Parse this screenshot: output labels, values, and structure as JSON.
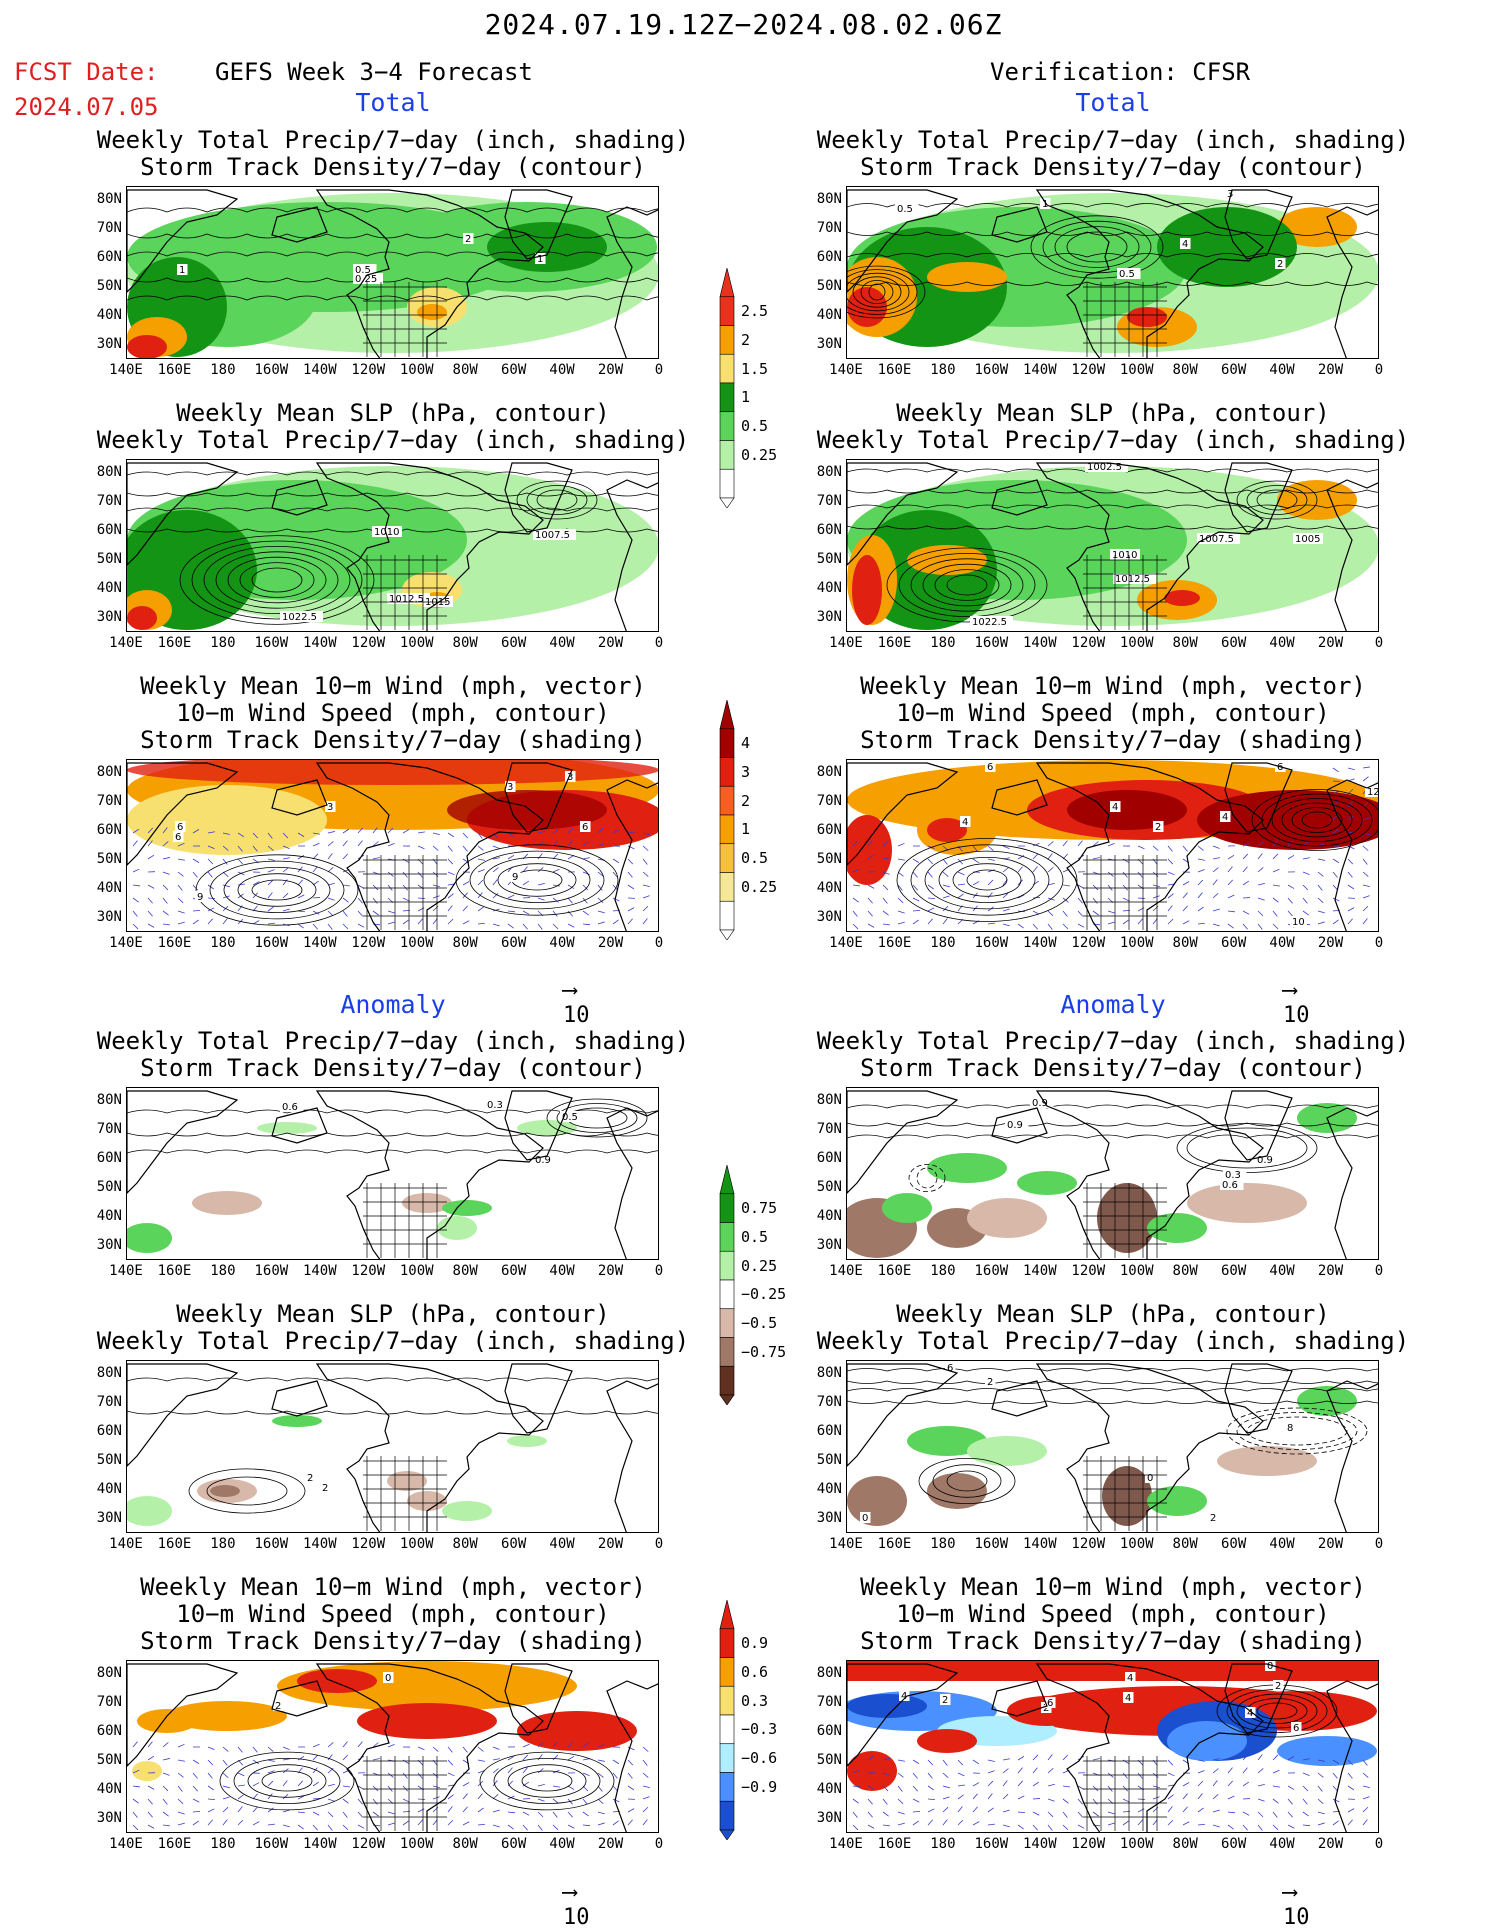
{
  "header": {
    "date_range": "2024.07.19.12Z−2024.08.02.06Z",
    "fcst_date_label": "FCST Date:",
    "fcst_date_value": "2024.07.05",
    "left_title": "GEFS Week 3−4 Forecast",
    "right_title": "Verification: CFSR"
  },
  "sections": {
    "total": "Total",
    "anomaly": "Anomaly"
  },
  "axes": {
    "lat_labels": [
      "80N",
      "70N",
      "60N",
      "50N",
      "40N",
      "30N"
    ],
    "lon_labels": [
      "140E",
      "160E",
      "180",
      "160W",
      "140W",
      "120W",
      "100W",
      "80W",
      "60W",
      "40W",
      "20W",
      "0"
    ]
  },
  "panels": [
    {
      "line1": "Weekly Total Precip/7−day (inch, shading)",
      "line2": "Storm Track Density/7−day (contour)",
      "line3": ""
    },
    {
      "line1": "Weekly Mean SLP (hPa, contour)",
      "line2": "Weekly Total Precip/7−day (inch, shading)",
      "line3": ""
    },
    {
      "line1": "Weekly Mean 10−m Wind (mph, vector)",
      "line2": "10−m Wind Speed (mph, contour)",
      "line3": "Storm Track Density/7−day (shading)"
    }
  ],
  "vector_ref": "10",
  "map_labels": {
    "total_left_1": [
      "1",
      "2",
      "1",
      "0.5",
      "0.25"
    ],
    "total_right_1": [
      "0.5",
      "1",
      "3",
      "4",
      "2",
      "0.5"
    ],
    "total_left_2": [
      "1010",
      "1007.5",
      "1012.5",
      "1015",
      "1022.5"
    ],
    "total_right_2": [
      "1002.5",
      "1007.5",
      "1005",
      "1010",
      "1012.5",
      "1022.5"
    ],
    "total_left_3": [
      "3",
      "3",
      "6",
      "3",
      "6",
      "9",
      "9",
      "6"
    ],
    "total_right_3": [
      "6",
      "4",
      "4",
      "2",
      "4",
      "6",
      "12",
      "10"
    ],
    "anom_left_1": [
      "0.6",
      "0.3",
      "0.5",
      "0.9"
    ],
    "anom_right_1": [
      "0.9",
      "0.9",
      "0.9",
      "0.3",
      "0.6"
    ],
    "anom_left_2": [
      "2",
      "2"
    ],
    "anom_right_2": [
      "6",
      "2",
      "8",
      "0",
      "2",
      "0"
    ],
    "anom_left_3": [
      "0",
      "2"
    ],
    "anom_right_3": [
      "4",
      "4",
      "2",
      "2",
      "6",
      "4",
      "0",
      "2",
      "4",
      "6"
    ]
  },
  "colorbars": {
    "precip_total": [
      "2.5",
      "2",
      "1.5",
      "1",
      "0.5",
      "0.25"
    ],
    "storm_total": [
      "4",
      "3",
      "2",
      "1",
      "0.5",
      "0.25"
    ],
    "precip_anom": [
      "0.75",
      "0.5",
      "0.25",
      "−0.25",
      "−0.5",
      "−0.75"
    ],
    "storm_anom": [
      "0.9",
      "0.6",
      "0.3",
      "−0.3",
      "−0.6",
      "−0.9"
    ]
  }
}
